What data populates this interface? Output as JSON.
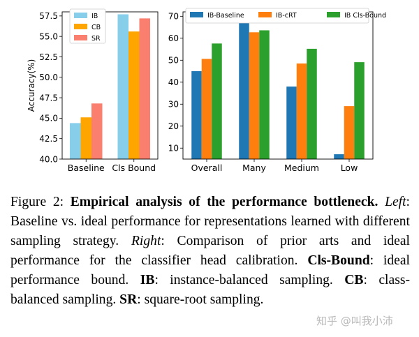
{
  "chart_data": [
    {
      "type": "bar",
      "categories": [
        "Baseline",
        "Cls Bound"
      ],
      "series": [
        {
          "name": "IB",
          "color": "#87ceeb",
          "values": [
            44.4,
            57.7
          ]
        },
        {
          "name": "CB",
          "color": "#ffa500",
          "values": [
            45.1,
            55.6
          ]
        },
        {
          "name": "SR",
          "color": "#fa7f6f",
          "values": [
            46.8,
            57.2
          ]
        }
      ],
      "ylabel": "Accuracy(%)",
      "ylim": [
        40.0,
        58.0
      ],
      "yticks": [
        "40.0",
        "42.5",
        "45.0",
        "47.5",
        "50.0",
        "52.5",
        "55.0",
        "57.5"
      ],
      "legend": "top-left"
    },
    {
      "type": "bar",
      "categories": [
        "Overall",
        "Many",
        "Medium",
        "Low"
      ],
      "series": [
        {
          "name": "IB-Baseline",
          "color": "#1f77b4",
          "values": [
            45.0,
            67.2,
            38.0,
            7.2
          ]
        },
        {
          "name": "IB-cRT",
          "color": "#ff7f0e",
          "values": [
            50.6,
            62.7,
            48.5,
            29.1
          ]
        },
        {
          "name": "IB Cls-Bound",
          "color": "#2ca02c",
          "values": [
            57.6,
            63.6,
            55.2,
            49.1
          ]
        }
      ],
      "ylim": [
        5,
        72
      ],
      "yticks": [
        "10",
        "20",
        "30",
        "40",
        "50",
        "60",
        "70"
      ],
      "legend": "top"
    }
  ],
  "caption": {
    "label": "Figure 2: ",
    "title": "Empirical analysis of the performance bottleneck.",
    "left_label": "Left",
    "left_text": ": Baseline vs. ideal performance for representations learned with different sampling strategy. ",
    "right_label": "Right",
    "right_text": ": Comparison of prior arts and ideal performance for the classifier head calibration. ",
    "clsbound_label": "Cls-Bound",
    "clsbound_text": ": ideal performance bound. ",
    "ib_label": "IB",
    "ib_text": ": instance-balanced sampling. ",
    "cb_label": "CB",
    "cb_text": ": class-balanced sampling. ",
    "sr_label": "SR",
    "sr_text": ": square-root sampling."
  },
  "watermark": "知乎 @叫我小沛"
}
